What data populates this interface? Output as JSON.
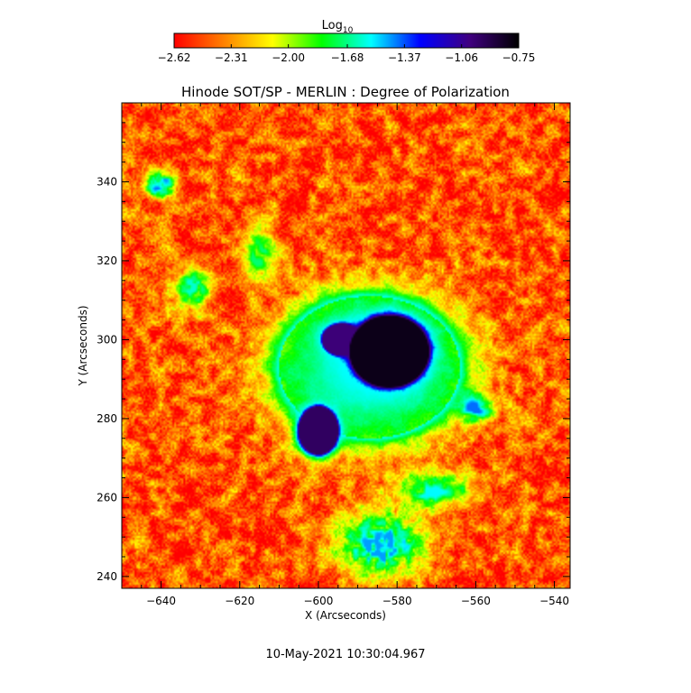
{
  "chart_data": {
    "type": "heatmap",
    "title": "Hinode SOT/SP - MERLIN : Degree of Polarization",
    "xlabel": "X (Arcseconds)",
    "ylabel": "Y (Arcseconds)",
    "xlim": [
      -650,
      -536
    ],
    "ylim": [
      237,
      360
    ],
    "xticks": [
      -640,
      -620,
      -600,
      -580,
      -560,
      -540
    ],
    "yticks": [
      240,
      260,
      280,
      300,
      320,
      340
    ],
    "xtick_labels": [
      "−640",
      "−620",
      "−600",
      "−580",
      "−560",
      "−540"
    ],
    "ytick_labels": [
      "240",
      "260",
      "280",
      "300",
      "320",
      "340"
    ],
    "colorbar": {
      "label_base": "Log",
      "label_sub": "10",
      "range": [
        -2.62,
        -0.75
      ],
      "ticks": [
        -2.62,
        -2.31,
        -2.0,
        -1.68,
        -1.37,
        -1.06,
        -0.75
      ],
      "tick_labels": [
        "−2.62",
        "−2.31",
        "−2.00",
        "−1.68",
        "−1.37",
        "−1.06",
        "−0.75"
      ],
      "colormap": [
        "#ff0000",
        "#ff8000",
        "#ffff00",
        "#00ff00",
        "#00ffff",
        "#0000ff",
        "#400080",
        "#000000"
      ]
    },
    "features": [
      {
        "kind": "umbra",
        "x": -582,
        "y": 297,
        "rx": 10,
        "ry": 9,
        "value": -0.8
      },
      {
        "kind": "umbra",
        "x": -600,
        "y": 277,
        "rx": 5,
        "ry": 6,
        "value": -0.95
      },
      {
        "kind": "umbra",
        "x": -594,
        "y": 300,
        "rx": 5,
        "ry": 4,
        "value": -1.0
      },
      {
        "kind": "penumbra",
        "x": -587,
        "y": 293,
        "rx": 23,
        "ry": 18,
        "value": -1.55
      },
      {
        "kind": "plage",
        "x": -640,
        "y": 339,
        "rx": 4,
        "ry": 4,
        "value": -1.35
      },
      {
        "kind": "plage",
        "x": -632,
        "y": 313,
        "rx": 5,
        "ry": 6,
        "value": -1.6
      },
      {
        "kind": "plage",
        "x": -560,
        "y": 283,
        "rx": 5,
        "ry": 4,
        "value": -1.4
      },
      {
        "kind": "plage",
        "x": -570,
        "y": 262,
        "rx": 10,
        "ry": 5,
        "value": -1.55
      },
      {
        "kind": "plage",
        "x": -584,
        "y": 248,
        "rx": 12,
        "ry": 9,
        "value": -1.45
      },
      {
        "kind": "plage",
        "x": -615,
        "y": 322,
        "rx": 5,
        "ry": 7,
        "value": -1.7
      },
      {
        "kind": "quiet",
        "x": -593,
        "y": 300,
        "rx": 60,
        "ry": 62,
        "value": -2.45
      }
    ],
    "timestamp": "10-May-2021 10:30:04.967"
  }
}
